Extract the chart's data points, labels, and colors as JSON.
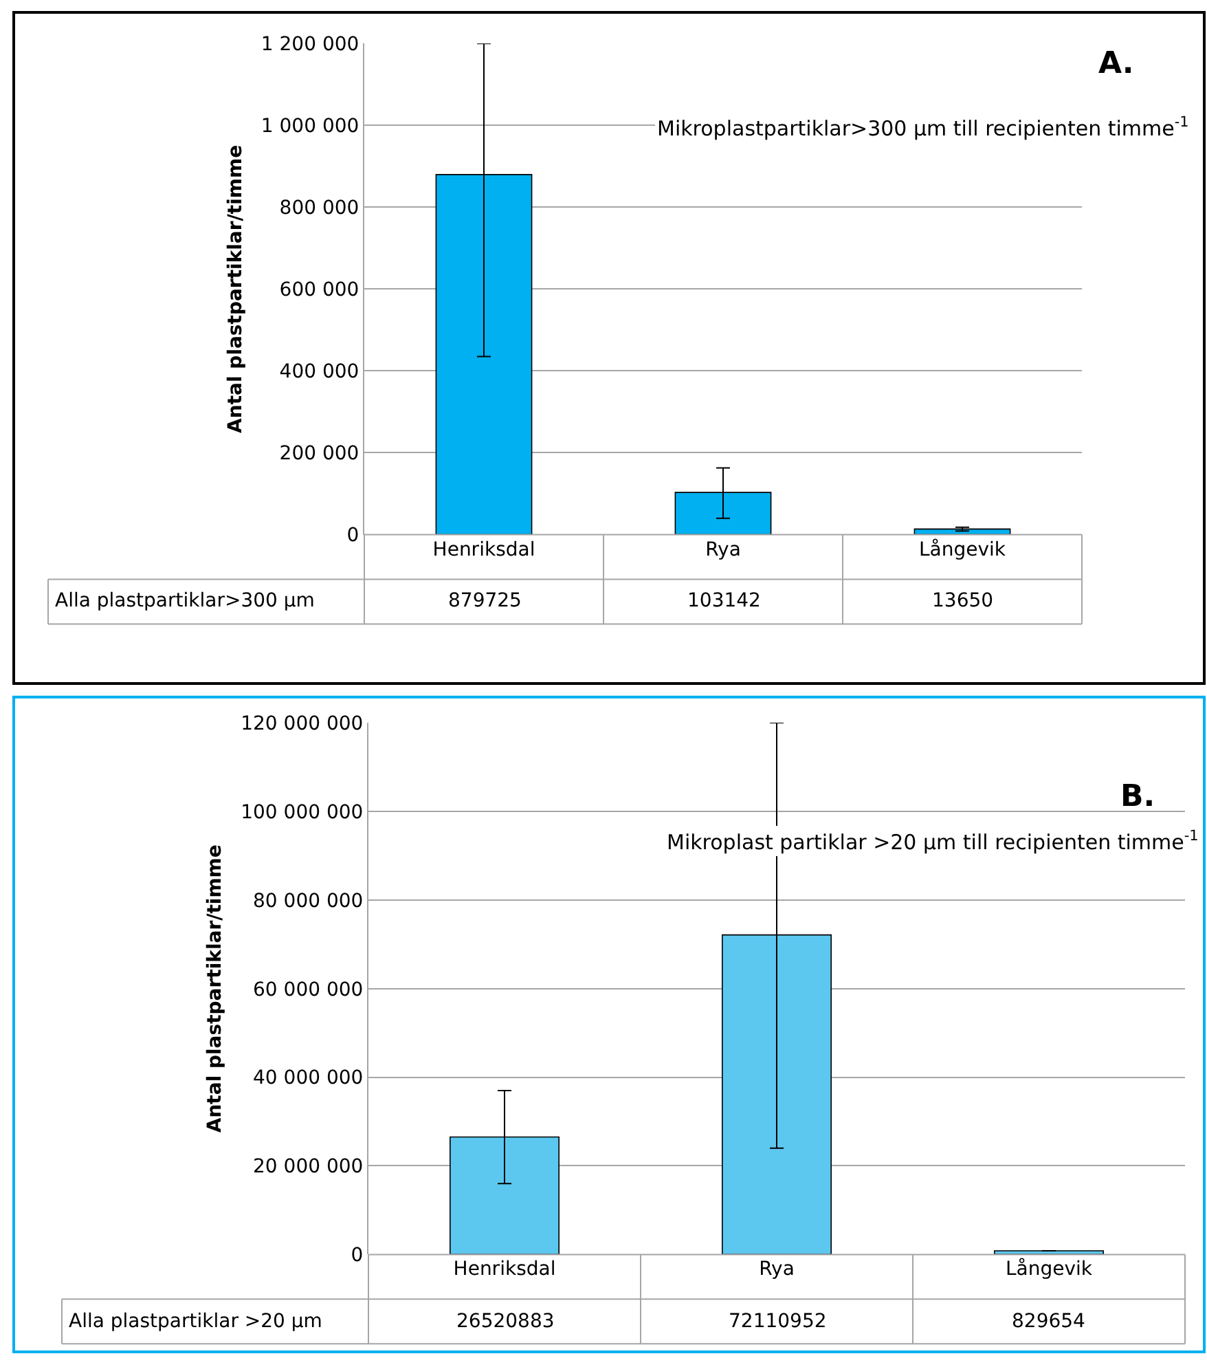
{
  "chart_data": [
    {
      "type": "bar",
      "ylabel": "Antal plastpartiklar/timme",
      "categories": [
        "Henriksdal",
        "Rya",
        "Långevik"
      ],
      "values": [
        879725,
        103142,
        13650
      ],
      "color": "#00b0f0",
      "errors": [
        [
          435000,
          1200000
        ],
        [
          40000,
          163000
        ],
        [
          9000,
          18000
        ]
      ],
      "ylim": [
        0,
        1200000
      ],
      "yticks": [
        {
          "value": 0,
          "label": "0"
        },
        {
          "value": 200000,
          "label": "200 000"
        },
        {
          "value": 400000,
          "label": "400 000"
        },
        {
          "value": 600000,
          "label": "600 000"
        },
        {
          "value": 800000,
          "label": "800 000"
        },
        {
          "value": 1000000,
          "label": "1 000 000"
        },
        {
          "value": 1200000,
          "label": "1 200 000"
        }
      ],
      "grid": "y",
      "data_labels": true,
      "annotations": [
        "A.",
        "Mikroplastpartiklar>300 µm till recipienten timme$^{-1}$",
        "Alla plastpartiklar>300 µm"
      ]
    },
    {
      "type": "bar",
      "ylabel": "Antal plastpartiklar/timme",
      "categories": [
        "Henriksdal",
        "Rya",
        "Långevik"
      ],
      "values": [
        26520883,
        72110952,
        829654
      ],
      "color": "#5cc8f0",
      "errors": [
        [
          16000000,
          37000000
        ],
        [
          24000000,
          120000000
        ],
        null
      ],
      "ylim": [
        0,
        120000000
      ],
      "yticks": [
        {
          "value": 0,
          "label": "0"
        },
        {
          "value": 20000000,
          "label": "20 000 000"
        },
        {
          "value": 40000000,
          "label": "40 000 000"
        },
        {
          "value": 60000000,
          "label": "60 000 000"
        },
        {
          "value": 80000000,
          "label": "80 000 000"
        },
        {
          "value": 100000000,
          "label": "100 000 000"
        },
        {
          "value": 120000000,
          "label": "120 000 000"
        }
      ],
      "grid": "y",
      "data_labels": true,
      "annotations": [
        "B.",
        "Mikroplast partiklar >20 µm till recipienten timme$^{-1}$",
        "Alla plastpartiklar >20 µm"
      ]
    }
  ]
}
